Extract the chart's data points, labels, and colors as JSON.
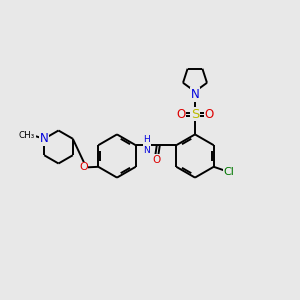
{
  "bg_color": "#e8e8e8",
  "lw": 1.4,
  "fs": 7.5,
  "atom_colors": {
    "N": "#0000dd",
    "O": "#dd0000",
    "S": "#bbbb00",
    "Cl": "#007700",
    "C": "#000000"
  }
}
